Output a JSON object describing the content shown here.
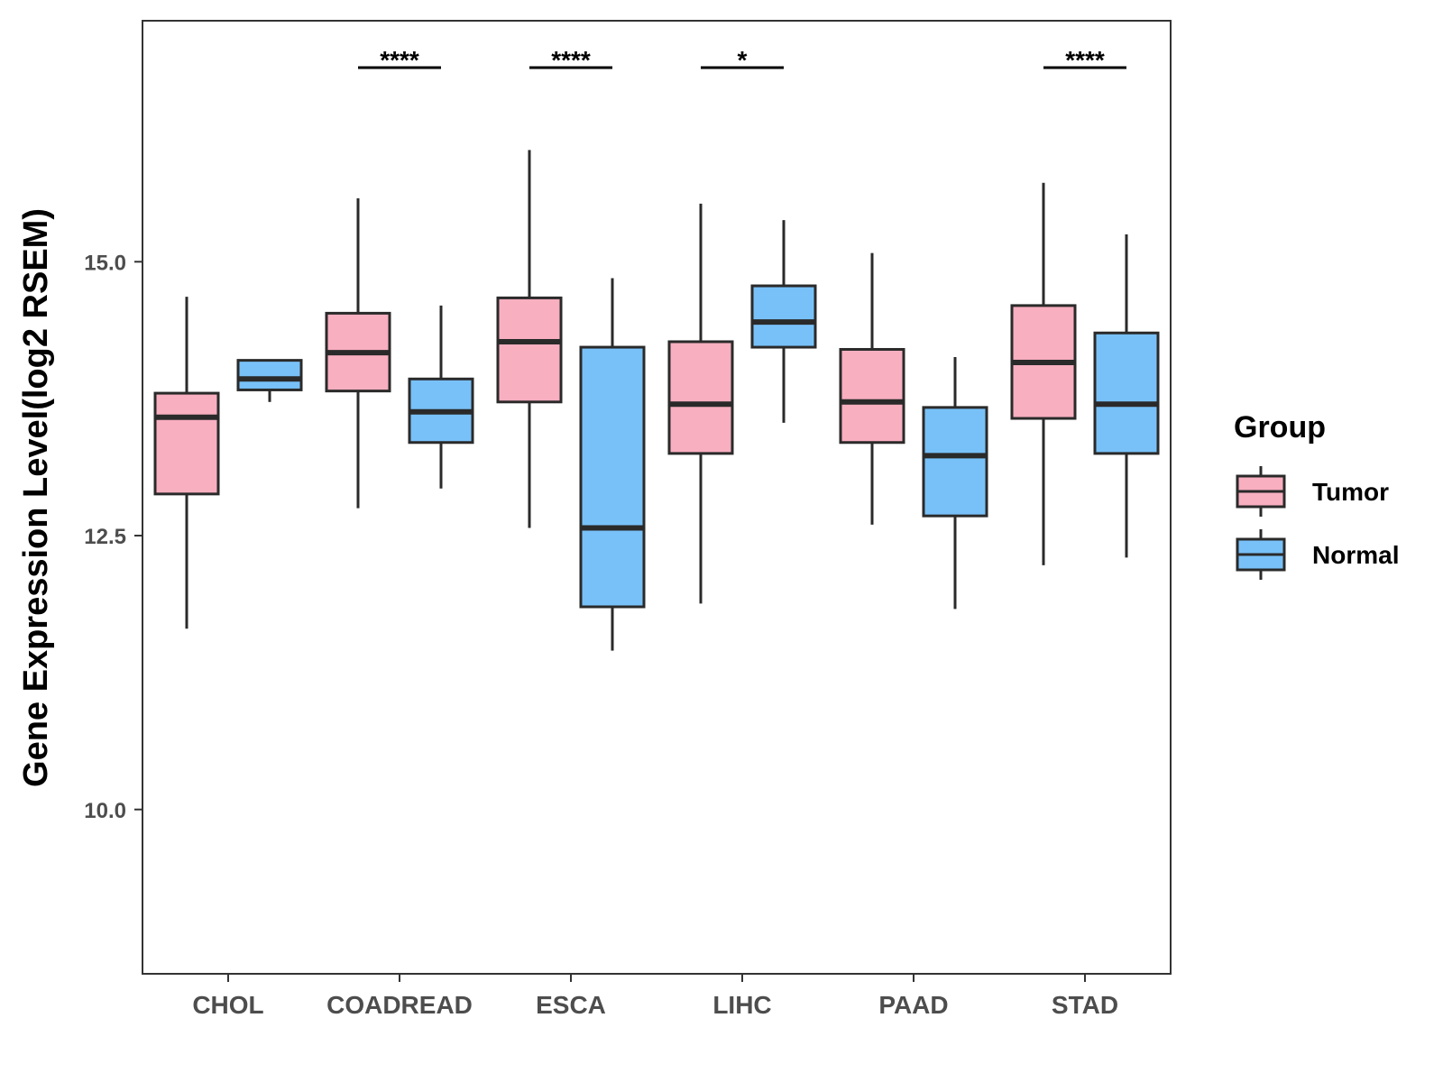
{
  "chart_data": {
    "type": "boxplot",
    "title": "",
    "xlabel": "",
    "ylabel": "Gene Expression Level(log2 RSEM)",
    "ylim": [
      8.5,
      17.2
    ],
    "y_ticks": [
      10.0,
      12.5,
      15.0
    ],
    "y_tick_labels": [
      "10.0",
      "12.5",
      "15.0"
    ],
    "grid": false,
    "categories": [
      "CHOL",
      "COADREAD",
      "ESCA",
      "LIHC",
      "PAAD",
      "STAD"
    ],
    "legend": {
      "title": "Group",
      "position": "right",
      "entries": [
        {
          "name": "Tumor",
          "color": "#f8afc0"
        },
        {
          "name": "Normal",
          "color": "#78c1f8"
        }
      ]
    },
    "series": [
      {
        "name": "Tumor",
        "color": "#f8afc0",
        "boxes": [
          {
            "category": "CHOL",
            "whisker_low": 11.65,
            "q1": 12.88,
            "median": 13.58,
            "q3": 13.8,
            "whisker_high": 14.68
          },
          {
            "category": "COADREAD",
            "whisker_low": 12.75,
            "q1": 13.82,
            "median": 14.17,
            "q3": 14.53,
            "whisker_high": 15.58
          },
          {
            "category": "ESCA",
            "whisker_low": 12.57,
            "q1": 13.72,
            "median": 14.27,
            "q3": 14.67,
            "whisker_high": 16.02
          },
          {
            "category": "LIHC",
            "whisker_low": 11.88,
            "q1": 13.25,
            "median": 13.7,
            "q3": 14.27,
            "whisker_high": 15.53
          },
          {
            "category": "PAAD",
            "whisker_low": 12.6,
            "q1": 13.35,
            "median": 13.72,
            "q3": 14.2,
            "whisker_high": 15.08
          },
          {
            "category": "STAD",
            "whisker_low": 12.23,
            "q1": 13.57,
            "median": 14.08,
            "q3": 14.6,
            "whisker_high": 15.72
          }
        ]
      },
      {
        "name": "Normal",
        "color": "#78c1f8",
        "boxes": [
          {
            "category": "CHOL",
            "whisker_low": 13.72,
            "q1": 13.83,
            "median": 13.93,
            "q3": 14.1,
            "whisker_high": 14.1
          },
          {
            "category": "COADREAD",
            "whisker_low": 12.93,
            "q1": 13.35,
            "median": 13.63,
            "q3": 13.93,
            "whisker_high": 14.6
          },
          {
            "category": "ESCA",
            "whisker_low": 11.45,
            "q1": 11.85,
            "median": 12.57,
            "q3": 14.22,
            "whisker_high": 14.85
          },
          {
            "category": "LIHC",
            "whisker_low": 13.53,
            "q1": 14.22,
            "median": 14.45,
            "q3": 14.78,
            "whisker_high": 15.38
          },
          {
            "category": "PAAD",
            "whisker_low": 11.83,
            "q1": 12.68,
            "median": 13.23,
            "q3": 13.67,
            "whisker_high": 14.13
          },
          {
            "category": "STAD",
            "whisker_low": 12.3,
            "q1": 13.25,
            "median": 13.7,
            "q3": 14.35,
            "whisker_high": 15.25
          }
        ]
      }
    ],
    "annotations": [
      {
        "category": "COADREAD",
        "label": "****"
      },
      {
        "category": "ESCA",
        "label": "****"
      },
      {
        "category": "LIHC",
        "label": "*"
      },
      {
        "category": "STAD",
        "label": "****"
      }
    ]
  }
}
